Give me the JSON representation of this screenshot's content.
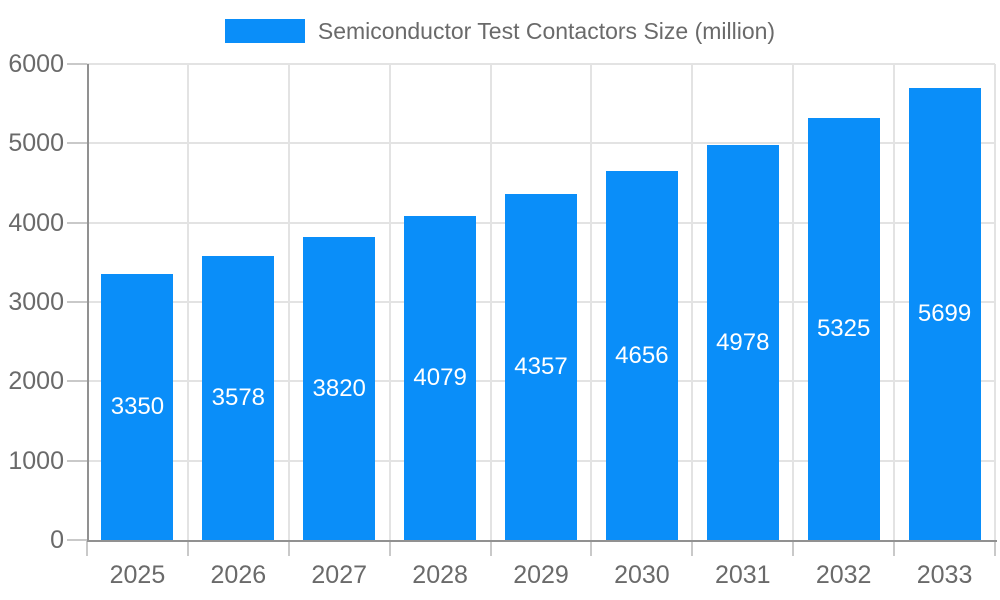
{
  "chart_data": {
    "type": "bar",
    "title": "Semiconductor Test Contactors Size (million)",
    "categories": [
      "2025",
      "2026",
      "2027",
      "2028",
      "2029",
      "2030",
      "2031",
      "2032",
      "2033"
    ],
    "values": [
      3350,
      3578,
      3820,
      4079,
      4357,
      4656,
      4978,
      5325,
      5699
    ],
    "xlabel": "",
    "ylabel": "",
    "ylim": [
      0,
      6000
    ],
    "yticks": [
      0,
      1000,
      2000,
      3000,
      4000,
      5000,
      6000
    ],
    "grid": "on",
    "legend_position": "top-center",
    "bar_labels_visible": true,
    "colors": {
      "bar": "#0a8ef9",
      "bar_label": "#ffffff",
      "gridline": "#e3e3e3",
      "axis_line": "#919191",
      "tick_mark": "#c9c9c9",
      "tick_label": "#6a6a6a",
      "legend_text": "#6a6a6a"
    }
  }
}
